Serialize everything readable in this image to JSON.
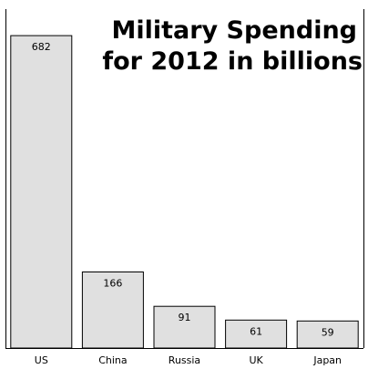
{
  "chart_data": {
    "type": "bar",
    "title": "Military Spending for 2012 in billions",
    "title_lines": [
      "Military Spending",
      "for 2012 in billions"
    ],
    "categories": [
      "US",
      "China",
      "Russia",
      "UK",
      "Japan"
    ],
    "values": [
      682,
      166,
      91,
      61,
      59
    ],
    "data_labels": [
      "682",
      "166",
      "91",
      "61",
      "59"
    ],
    "xlabel": "",
    "ylabel": "",
    "ylim": [
      0,
      720
    ],
    "grid": false,
    "legend": "none",
    "colors": {
      "bar_fill": "#e0e0e0",
      "bar_stroke": "#000000",
      "background": "#ffffff"
    }
  }
}
